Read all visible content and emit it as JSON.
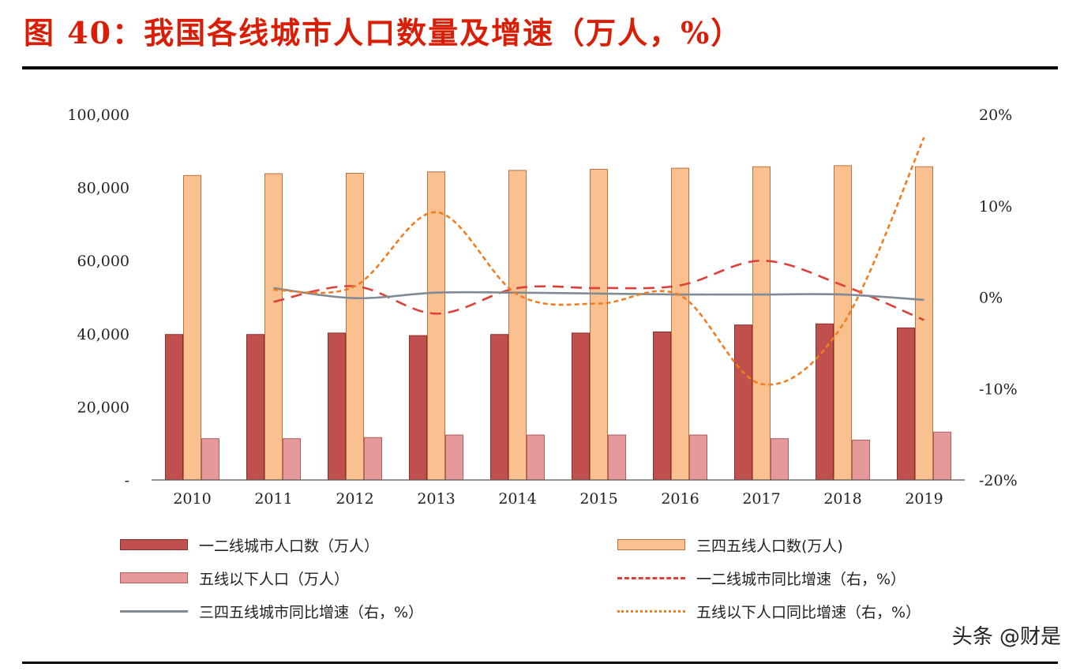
{
  "header": {
    "title": "图 40：我国各线城市人口数量及增速（万人，%）"
  },
  "chart_data": {
    "type": "bar",
    "categories": [
      "2010",
      "2011",
      "2012",
      "2013",
      "2014",
      "2015",
      "2016",
      "2017",
      "2018",
      "2019"
    ],
    "ylim": [
      0,
      100000
    ],
    "y2lim": [
      -20,
      20
    ],
    "y_ticks": [
      "-",
      "20,000",
      "40,000",
      "60,000",
      "80,000",
      "100,000"
    ],
    "y2_ticks": [
      "-20%",
      "-10%",
      "0%",
      "10%",
      "20%"
    ],
    "grid": false,
    "legend_position": "bottom",
    "series": [
      {
        "name": "一二线城市人口数（万人）",
        "type": "bar",
        "axis": "left",
        "color": "#c0504d",
        "values": [
          39800,
          39800,
          40200,
          39500,
          39800,
          40200,
          40500,
          42400,
          42700,
          41600
        ]
      },
      {
        "name": "三四五线人口数(万人)",
        "type": "bar",
        "axis": "left",
        "color": "#fac090",
        "values": [
          83300,
          83800,
          83900,
          84300,
          84700,
          85000,
          85300,
          85700,
          86000,
          85700
        ]
      },
      {
        "name": "五线以下人口（万人）",
        "type": "bar",
        "axis": "left",
        "color": "#e6999a",
        "values": [
          11300,
          11300,
          11600,
          12300,
          12300,
          12300,
          12300,
          11300,
          10900,
          13100
        ]
      },
      {
        "name": "一二线城市同比增速（右，%）",
        "type": "line",
        "axis": "right",
        "color": "#d9413a",
        "dash": "dashed",
        "values": [
          null,
          -0.5,
          1.2,
          -1.8,
          1.0,
          1.0,
          1.3,
          4.0,
          1.3,
          -2.5
        ]
      },
      {
        "name": "三四五线城市同比增速（右，%）",
        "type": "line",
        "axis": "right",
        "color": "#7f8a95",
        "dash": "solid",
        "values": [
          null,
          1.0,
          -0.1,
          0.5,
          0.5,
          0.4,
          0.3,
          0.3,
          0.3,
          -0.3
        ]
      },
      {
        "name": "五线以下人口同比增速（右，%）",
        "type": "line",
        "axis": "right",
        "color": "#ef7d22",
        "dash": "dotted",
        "values": [
          null,
          0.8,
          1.2,
          9.3,
          0.3,
          -0.7,
          0.2,
          -9.5,
          -3.0,
          17.5
        ]
      }
    ]
  },
  "watermark": {
    "text": "头条 @财是"
  }
}
